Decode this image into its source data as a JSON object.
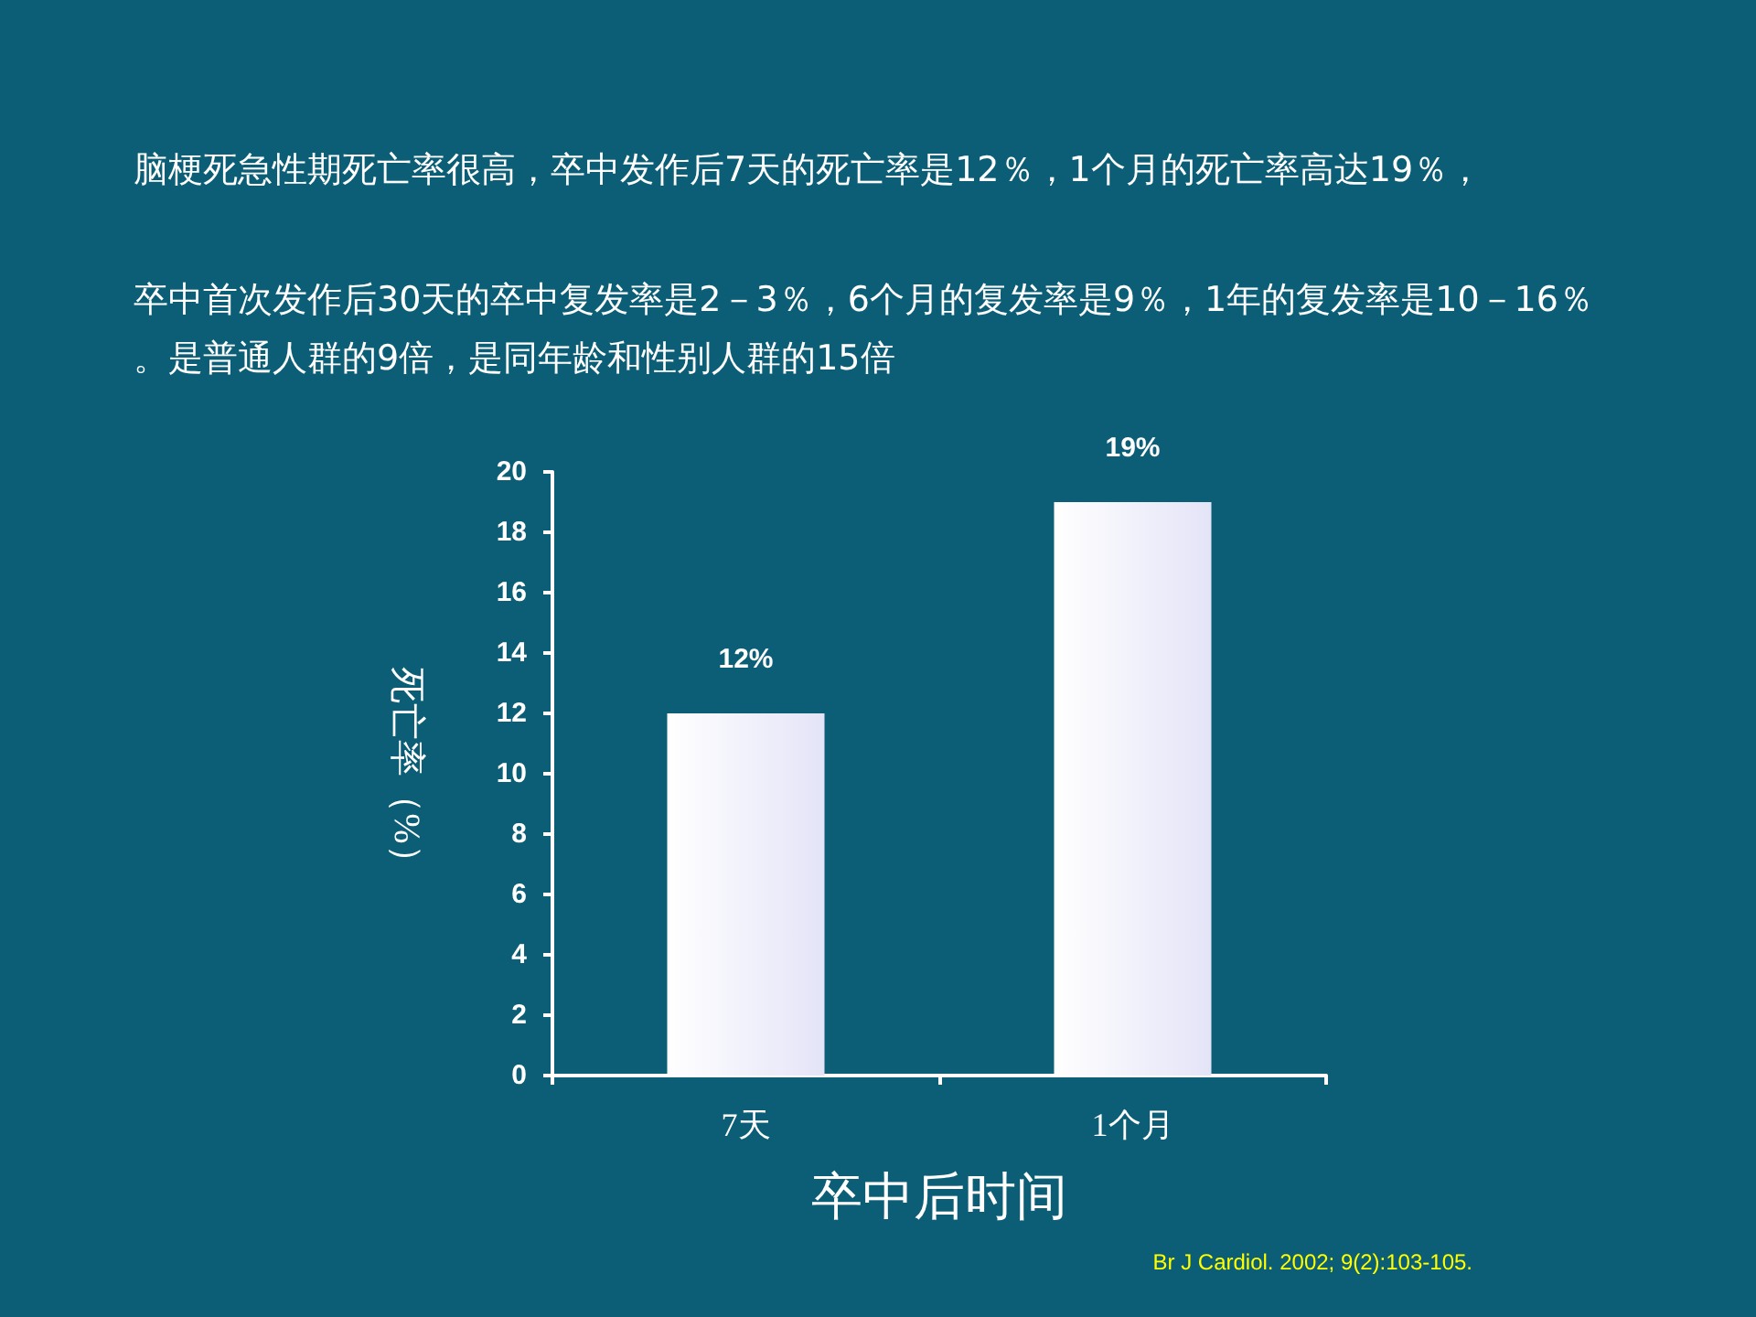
{
  "chart_data": {
    "type": "bar",
    "title": "脑梗死急性期死亡率很高，卒中发作后7天的死亡率是12％，1个月的死亡率高达19％，",
    "subtitle": "卒中首次发作后30天的卒中复发率是2－3％，6个月的复发率是9％，1年的复发率是10－16％。是普通人群的9倍，是同年龄和性别人群的15倍",
    "xlabel": "卒中后时间",
    "ylabel": "死亡率（%）",
    "categories": [
      "7天",
      "1个月"
    ],
    "values": [
      12,
      19
    ],
    "value_labels": [
      "12%",
      "19%"
    ],
    "color": "#e4e4f8",
    "ylim": [
      0,
      20
    ],
    "yticks": [
      0,
      2,
      4,
      6,
      8,
      10,
      12,
      14,
      16,
      18,
      20
    ],
    "grid": false,
    "annotations": [
      "Br J Cardiol. 2002; 9(2):103-105."
    ]
  }
}
